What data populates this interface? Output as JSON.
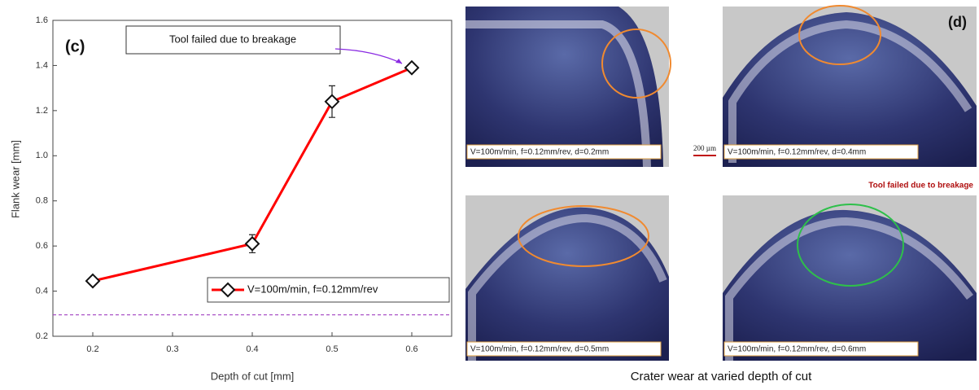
{
  "chart_data": {
    "type": "line",
    "label": "(c)",
    "xlabel": "Depth of cut [mm]",
    "ylabel": "Flank wear [mm]",
    "x": [
      0.2,
      0.4,
      0.5,
      0.6
    ],
    "series": [
      {
        "name": "V=100m/min, f=0.12mm/rev",
        "color": "#ff0000",
        "values": [
          0.445,
          0.61,
          1.24,
          1.39
        ],
        "errors": [
          0.01,
          0.04,
          0.07,
          0.01
        ]
      }
    ],
    "xlim": [
      0.15,
      0.65
    ],
    "ylim": [
      0.2,
      1.6
    ],
    "xticks": [
      0.2,
      0.3,
      0.4,
      0.5,
      0.6
    ],
    "yticks": [
      0.2,
      0.4,
      0.6,
      0.8,
      {
        "value": 1,
        "label": "1.0"
      },
      1.2,
      1.4,
      1.6
    ],
    "annotation": "Tool failed due to breakage",
    "reference_line": 0.295,
    "reference_color": "#a040c0"
  },
  "panel_d": {
    "label": "(d)",
    "caption": "Crater wear at varied depth of cut",
    "failure_note": "Tool failed due to breakage",
    "scale_label": "200 µm",
    "images": [
      {
        "caption": "V=100m/min, f=0.12mm/rev, d=0.2mm"
      },
      {
        "caption": "V=100m/min, f=0.12mm/rev, d=0.4mm"
      },
      {
        "caption": "V=100m/min, f=0.12mm/rev, d=0.5mm"
      },
      {
        "caption": "V=100m/min, f=0.12mm/rev, d=0.6mm"
      }
    ]
  }
}
